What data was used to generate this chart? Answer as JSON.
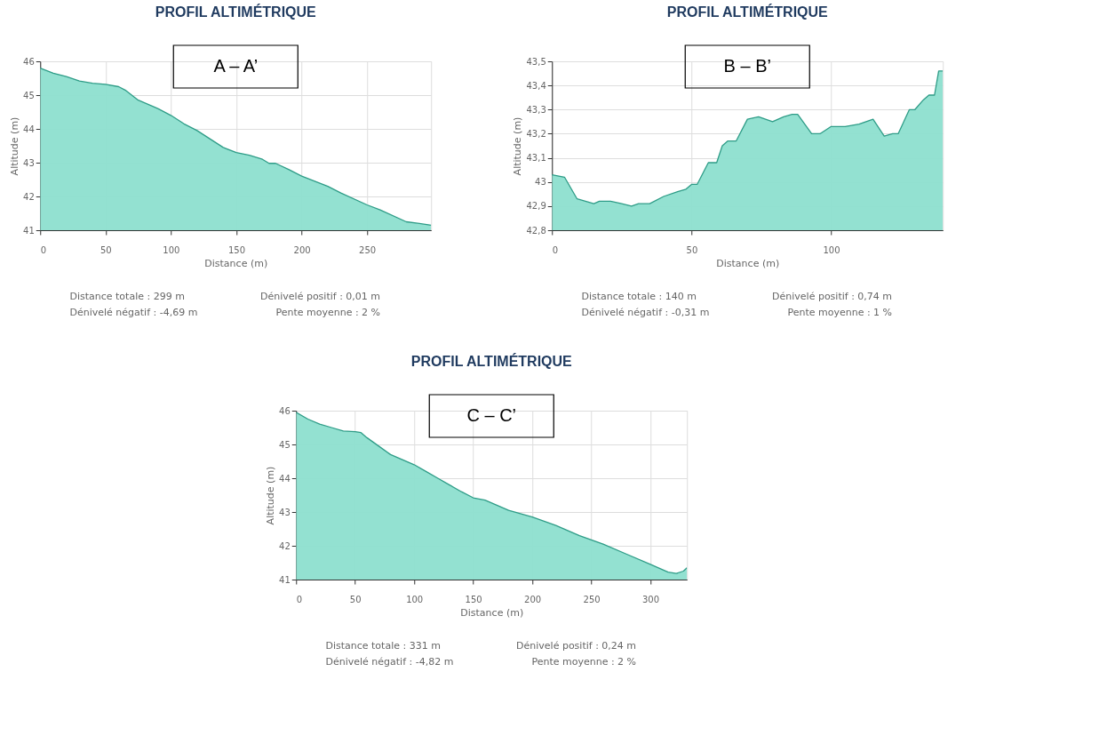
{
  "chart_data": [
    {
      "type": "area",
      "title": "PROFIL ALTIMÉTRIQUE",
      "subtitle": "A – A’",
      "xlabel": "Distance (m)",
      "ylabel": "Altitude (m)",
      "x": [
        0,
        10,
        20,
        30,
        40,
        50,
        60,
        65,
        75,
        90,
        100,
        110,
        120,
        130,
        140,
        150,
        160,
        170,
        175,
        180,
        190,
        200,
        220,
        230,
        250,
        260,
        280,
        290,
        299
      ],
      "series": [
        {
          "color": "#8ddfcf",
          "values": [
            45.8,
            45.65,
            45.55,
            45.42,
            45.35,
            45.32,
            45.25,
            45.15,
            44.85,
            44.6,
            44.4,
            44.15,
            43.95,
            43.7,
            43.45,
            43.3,
            43.22,
            43.1,
            42.98,
            42.98,
            42.8,
            42.6,
            42.3,
            42.1,
            41.75,
            41.6,
            41.25,
            41.2,
            41.15
          ]
        }
      ],
      "xlim": [
        0,
        299
      ],
      "xticks": [
        0,
        50,
        100,
        150,
        200,
        250
      ],
      "ylim": [
        41,
        46
      ],
      "yticks": [
        41,
        42,
        43,
        44,
        45,
        46
      ],
      "grid": true,
      "annotations": [
        "Distance totale : 299 m",
        "Dénivelé positif : 0,01 m",
        "Dénivelé négatif : -4,69 m",
        "Pente moyenne : 2 %"
      ]
    },
    {
      "type": "area",
      "title": "PROFIL ALTIMÉTRIQUE",
      "subtitle": "B – B’",
      "xlabel": "Distance (m)",
      "ylabel": "Altitude (m)",
      "x": [
        0,
        4.5,
        9,
        15,
        17,
        21,
        25,
        28.5,
        31,
        35,
        40,
        45,
        48,
        50,
        52,
        56,
        59,
        61,
        63,
        66,
        70,
        74,
        79,
        83,
        86,
        88,
        93,
        96,
        100,
        105,
        110,
        115,
        119,
        122,
        124,
        128,
        130,
        133,
        135,
        137,
        138.5,
        140
      ],
      "series": [
        {
          "color": "#8ddfcf",
          "values": [
            43.03,
            43.02,
            42.93,
            42.91,
            42.92,
            42.92,
            42.91,
            42.9,
            42.91,
            42.91,
            42.94,
            42.96,
            42.97,
            42.99,
            42.99,
            43.08,
            43.08,
            43.15,
            43.17,
            43.17,
            43.26,
            43.27,
            43.25,
            43.27,
            43.28,
            43.28,
            43.2,
            43.2,
            43.23,
            43.23,
            43.24,
            43.26,
            43.19,
            43.2,
            43.2,
            43.3,
            43.3,
            43.34,
            43.36,
            43.36,
            43.46,
            43.46
          ]
        }
      ],
      "xlim": [
        0,
        140
      ],
      "xticks": [
        0,
        50,
        100
      ],
      "ylim": [
        42.8,
        43.5
      ],
      "yticks": [
        {
          "value": 42.8,
          "label": "42,8"
        },
        {
          "value": 42.9,
          "label": "42,9"
        },
        {
          "value": 43,
          "label": "43"
        },
        {
          "value": 43.1,
          "label": "43,1"
        },
        {
          "value": 43.2,
          "label": "43,2"
        },
        {
          "value": 43.3,
          "label": "43,3"
        },
        {
          "value": 43.4,
          "label": "43,4"
        },
        {
          "value": 43.5,
          "label": "43,5"
        }
      ],
      "grid": true,
      "annotations": [
        "Distance totale : 140 m",
        "Dénivelé positif : 0,74 m",
        "Dénivelé négatif : -0,31 m",
        "Pente moyenne : 1 %"
      ]
    },
    {
      "type": "area",
      "title": "PROFIL ALTIMÉTRIQUE",
      "subtitle": "C – C’",
      "xlabel": "Distance (m)",
      "ylabel": "Altitude (m)",
      "x": [
        0,
        10,
        20,
        30,
        40,
        50,
        55,
        60,
        70,
        80,
        90,
        100,
        110,
        120,
        130,
        140,
        150,
        160,
        170,
        180,
        190,
        200,
        220,
        240,
        260,
        280,
        300,
        315,
        322,
        328,
        331
      ],
      "series": [
        {
          "color": "#8ddfcf",
          "values": [
            45.95,
            45.75,
            45.6,
            45.5,
            45.4,
            45.38,
            45.35,
            45.2,
            44.95,
            44.7,
            44.55,
            44.4,
            44.2,
            44.0,
            43.8,
            43.6,
            43.42,
            43.35,
            43.2,
            43.05,
            42.95,
            42.85,
            42.6,
            42.3,
            42.05,
            41.75,
            41.45,
            41.22,
            41.18,
            41.25,
            41.35
          ]
        }
      ],
      "xlim": [
        0,
        331
      ],
      "xticks": [
        0,
        50,
        100,
        150,
        200,
        250,
        300
      ],
      "ylim": [
        41,
        46
      ],
      "yticks": [
        41,
        42,
        43,
        44,
        45,
        46
      ],
      "grid": true,
      "annotations": [
        "Distance totale : 331 m",
        "Dénivelé positif : 0,24 m",
        "Dénivelé négatif : -4,82 m",
        "Pente moyenne : 2 %"
      ]
    }
  ]
}
